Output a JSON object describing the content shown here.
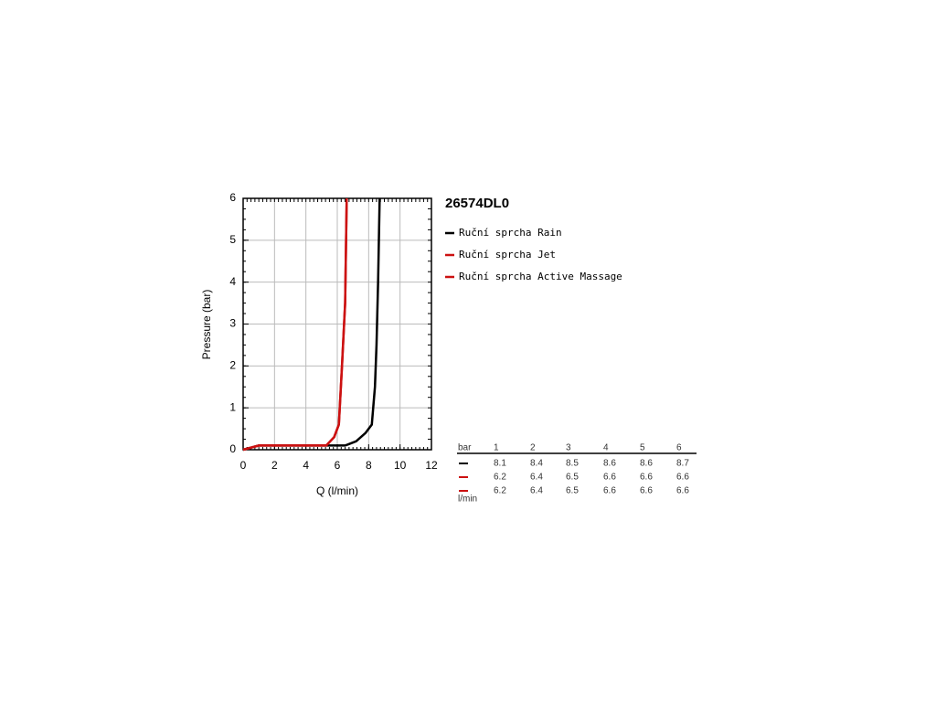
{
  "chart_data": {
    "type": "line",
    "title": "26574DL0",
    "x_label": "Q (l/min)",
    "y_label": "Pressure (bar)",
    "xlim": [
      0,
      12
    ],
    "xticks": [
      0,
      2,
      4,
      6,
      8,
      10,
      12
    ],
    "ylim": [
      0,
      6
    ],
    "yticks": [
      0,
      1,
      2,
      3,
      4,
      5,
      6
    ],
    "grid": true,
    "series": [
      {
        "name": "Ruční sprcha Rain",
        "color": "#000000",
        "x": [
          0,
          0.5,
          1,
          6.5,
          7.2,
          7.8,
          8.2,
          8.4,
          8.5,
          8.6,
          8.7
        ],
        "values": [
          0,
          0.05,
          0.1,
          0.1,
          0.2,
          0.4,
          0.6,
          1.5,
          2.5,
          4,
          6
        ]
      },
      {
        "name": "Ruční sprcha Jet",
        "color": "#cc1111",
        "x": [
          0,
          0.5,
          1,
          5.3,
          5.8,
          6.1,
          6.3,
          6.5,
          6.6
        ],
        "values": [
          0,
          0.05,
          0.1,
          0.1,
          0.3,
          0.6,
          2,
          3.5,
          6
        ]
      },
      {
        "name": "Ruční sprcha Active Massage",
        "color": "#cc1111",
        "x": [
          0,
          0.5,
          1,
          5.3,
          5.8,
          6.1,
          6.3,
          6.5,
          6.6
        ],
        "values": [
          0,
          0.05,
          0.1,
          0.1,
          0.3,
          0.6,
          2,
          3.5,
          6
        ]
      }
    ]
  },
  "table": {
    "header": [
      "bar",
      1,
      2,
      3,
      4,
      5,
      6
    ],
    "rows": [
      [
        8.1,
        8.4,
        8.5,
        8.6,
        8.6,
        8.7
      ],
      [
        6.2,
        6.4,
        6.5,
        6.6,
        6.6,
        6.6
      ],
      [
        6.2,
        6.4,
        6.5,
        6.6,
        6.6,
        6.6
      ]
    ],
    "unit": "l/min"
  }
}
